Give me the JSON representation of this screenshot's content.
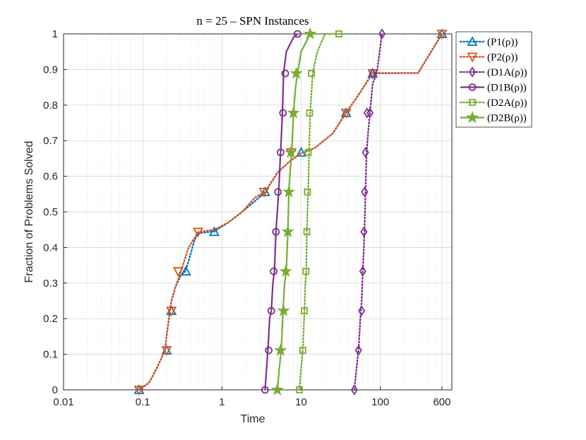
{
  "chart_data": {
    "type": "line",
    "title": "n = 25 – SPN Instances",
    "xlabel": "Time",
    "ylabel": "Fraction of Problems Solved",
    "xscale": "log",
    "xlim": [
      0.01,
      800
    ],
    "ylim": [
      0,
      1
    ],
    "xticks": [
      0.01,
      0.1,
      1,
      10,
      100,
      600
    ],
    "xtick_labels": [
      "0.01",
      "0.1",
      "1",
      "10",
      "100",
      "600"
    ],
    "yticks": [
      0,
      0.1,
      0.2,
      0.3,
      0.4,
      0.5,
      0.6,
      0.7,
      0.8,
      0.9,
      1
    ],
    "ytick_labels": [
      "0",
      "0.1",
      "0.2",
      "0.3",
      "0.4",
      "0.5",
      "0.6",
      "0.7",
      "0.8",
      "0.9",
      "1"
    ],
    "grid": true,
    "legend_position": "outside-top-right",
    "series": [
      {
        "name": "(P1(ρ))",
        "color": "#0072BD",
        "style": "dotted",
        "marker": "triangle-up",
        "x": [
          0.09,
          0.12,
          0.15,
          0.19,
          0.2,
          0.22,
          0.23,
          0.26,
          0.3,
          0.35,
          0.45,
          0.5,
          0.8,
          1.2,
          1.8,
          2.6,
          3.5,
          5.0,
          7.0,
          10.0,
          15.0,
          25.0,
          37.0,
          50.0,
          80.0,
          300.0,
          600.0
        ],
        "y": [
          0.0,
          0.02,
          0.06,
          0.11,
          0.15,
          0.22,
          0.25,
          0.29,
          0.32,
          0.335,
          0.42,
          0.44,
          0.445,
          0.47,
          0.5,
          0.53,
          0.555,
          0.61,
          0.64,
          0.665,
          0.68,
          0.72,
          0.78,
          0.82,
          0.89,
          0.89,
          1.0
        ],
        "marker_x": [
          0.09,
          0.2,
          0.23,
          0.35,
          0.8,
          3.5,
          10.0,
          37.0,
          80.0,
          600.0
        ],
        "marker_y": [
          0.0,
          0.111,
          0.222,
          0.333,
          0.444,
          0.556,
          0.667,
          0.778,
          0.889,
          1.0
        ]
      },
      {
        "name": "(P2(ρ))",
        "color": "#D95319",
        "style": "dotted",
        "marker": "triangle-down",
        "x": [
          0.09,
          0.12,
          0.15,
          0.19,
          0.2,
          0.22,
          0.23,
          0.26,
          0.3,
          0.38,
          0.5,
          0.8,
          1.2,
          1.8,
          2.6,
          3.5,
          5.0,
          7.0,
          10.0,
          15.0,
          25.0,
          37.0,
          50.0,
          80.0,
          300.0,
          600.0
        ],
        "y": [
          0.0,
          0.02,
          0.06,
          0.11,
          0.15,
          0.22,
          0.25,
          0.29,
          0.33,
          0.4,
          0.443,
          0.45,
          0.47,
          0.5,
          0.54,
          0.556,
          0.61,
          0.64,
          0.665,
          0.68,
          0.72,
          0.778,
          0.82,
          0.889,
          0.89,
          1.0
        ],
        "marker_x": [
          0.09,
          0.2,
          0.23,
          0.28,
          0.5,
          3.4,
          7.5,
          37.0,
          80.0,
          600.0
        ],
        "marker_y": [
          0.0,
          0.111,
          0.222,
          0.333,
          0.444,
          0.556,
          0.667,
          0.778,
          0.889,
          1.0
        ]
      },
      {
        "name": "(D1A(ρ))",
        "color": "#7E2F8E",
        "style": "dotted",
        "marker": "diamond",
        "x": [
          47,
          50,
          53,
          56,
          58,
          60,
          62,
          63,
          64,
          65,
          66,
          67,
          70,
          74,
          80,
          90,
          105
        ],
        "y": [
          0.0,
          0.06,
          0.111,
          0.2,
          0.25,
          0.333,
          0.4,
          0.444,
          0.5,
          0.556,
          0.62,
          0.667,
          0.72,
          0.778,
          0.86,
          0.889,
          1.0
        ],
        "marker_x": [
          47,
          53,
          58,
          60,
          62,
          63.5,
          65,
          68,
          74,
          80,
          105
        ],
        "marker_y": [
          0.0,
          0.111,
          0.222,
          0.333,
          0.444,
          0.556,
          0.667,
          0.778,
          0.778,
          0.889,
          1.0
        ]
      },
      {
        "name": "(D1B(ρ))",
        "color": "#7E2F8E",
        "style": "solid",
        "marker": "circle",
        "x": [
          3.5,
          3.8,
          4.0,
          4.2,
          4.4,
          4.6,
          4.8,
          5.0,
          5.2,
          5.5,
          5.8,
          6.0,
          6.5,
          8.0,
          9.0
        ],
        "y": [
          0.0,
          0.111,
          0.2,
          0.222,
          0.3,
          0.333,
          0.444,
          0.5,
          0.556,
          0.667,
          0.778,
          0.889,
          0.95,
          0.99,
          1.0
        ],
        "marker_x": [
          3.5,
          3.9,
          4.2,
          4.5,
          4.8,
          5.1,
          5.5,
          5.9,
          6.3,
          9.0
        ],
        "marker_y": [
          0.0,
          0.111,
          0.222,
          0.333,
          0.444,
          0.556,
          0.667,
          0.778,
          0.889,
          1.0
        ]
      },
      {
        "name": "(D2A(ρ))",
        "color": "#77AC30",
        "style": "dotted",
        "marker": "square",
        "x": [
          9.5,
          10.0,
          10.5,
          11.0,
          11.3,
          11.6,
          11.8,
          12.0,
          12.3,
          12.6,
          13.0,
          14.0,
          16.0,
          20.0,
          30.0
        ],
        "y": [
          0.0,
          0.06,
          0.111,
          0.222,
          0.3,
          0.333,
          0.444,
          0.5,
          0.556,
          0.667,
          0.778,
          0.889,
          0.95,
          1.0,
          1.0
        ],
        "marker_x": [
          9.5,
          10.5,
          11.0,
          11.5,
          11.8,
          12.0,
          12.3,
          12.8,
          13.5,
          30.0
        ],
        "marker_y": [
          0.0,
          0.111,
          0.222,
          0.333,
          0.444,
          0.556,
          0.667,
          0.778,
          0.889,
          1.0
        ]
      },
      {
        "name": "(D2B(ρ))",
        "color": "#77AC30",
        "style": "solid",
        "marker": "pentagram",
        "x": [
          5.0,
          5.3,
          5.6,
          5.9,
          6.2,
          6.5,
          6.8,
          7.0,
          7.3,
          7.6,
          8.0,
          8.5,
          9.0,
          10.0,
          13.0
        ],
        "y": [
          0.0,
          0.06,
          0.111,
          0.222,
          0.3,
          0.333,
          0.444,
          0.556,
          0.62,
          0.667,
          0.778,
          0.85,
          0.889,
          0.95,
          1.0
        ],
        "marker_x": [
          5.0,
          5.5,
          6.0,
          6.4,
          6.8,
          7.0,
          7.4,
          8.0,
          8.7,
          13.0
        ],
        "marker_y": [
          0.0,
          0.111,
          0.222,
          0.333,
          0.444,
          0.556,
          0.667,
          0.778,
          0.889,
          1.0
        ]
      }
    ]
  }
}
